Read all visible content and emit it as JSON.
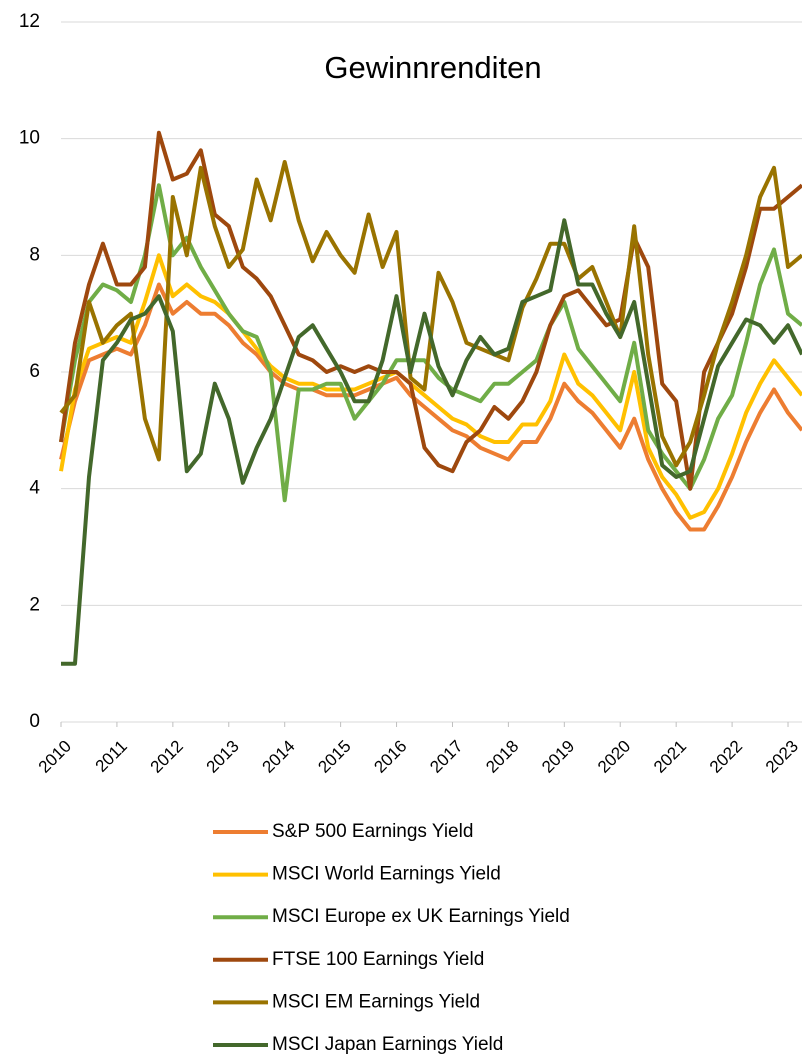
{
  "chart_data": {
    "type": "line",
    "title": "Gewinnrenditen",
    "x": [
      2010,
      2010.25,
      2010.5,
      2010.75,
      2011,
      2011.25,
      2011.5,
      2011.75,
      2012,
      2012.25,
      2012.5,
      2012.75,
      2013,
      2013.25,
      2013.5,
      2013.75,
      2014,
      2014.25,
      2014.5,
      2014.75,
      2015,
      2015.25,
      2015.5,
      2015.75,
      2016,
      2016.25,
      2016.5,
      2016.75,
      2017,
      2017.25,
      2017.5,
      2017.75,
      2018,
      2018.25,
      2018.5,
      2018.75,
      2019,
      2019.25,
      2019.5,
      2019.75,
      2020,
      2020.25,
      2020.5,
      2020.75,
      2021,
      2021.25,
      2021.5,
      2021.75,
      2022,
      2022.25,
      2022.5,
      2022.75,
      2023,
      2023.25
    ],
    "series": [
      {
        "name": "S&P 500 Earnings Yield",
        "color": "#ed7d31",
        "values": [
          4.5,
          5.5,
          6.2,
          6.3,
          6.4,
          6.3,
          6.8,
          7.5,
          7.0,
          7.2,
          7.0,
          7.0,
          6.8,
          6.5,
          6.3,
          6.0,
          5.8,
          5.7,
          5.7,
          5.6,
          5.6,
          5.6,
          5.7,
          5.8,
          5.9,
          5.6,
          5.4,
          5.2,
          5.0,
          4.9,
          4.7,
          4.6,
          4.5,
          4.8,
          4.8,
          5.2,
          5.8,
          5.5,
          5.3,
          5.0,
          4.7,
          5.2,
          4.5,
          4.0,
          3.6,
          3.3,
          3.3,
          3.7,
          4.2,
          4.8,
          5.3,
          5.7,
          5.3,
          5.0
        ]
      },
      {
        "name": "MSCI World Earnings Yield",
        "color": "#ffc000",
        "values": [
          4.3,
          5.7,
          6.4,
          6.5,
          6.6,
          6.5,
          7.2,
          8.0,
          7.3,
          7.5,
          7.3,
          7.2,
          7.0,
          6.7,
          6.4,
          6.1,
          5.9,
          5.8,
          5.8,
          5.7,
          5.7,
          5.7,
          5.8,
          5.9,
          6.0,
          5.8,
          5.6,
          5.4,
          5.2,
          5.1,
          4.9,
          4.8,
          4.8,
          5.1,
          5.1,
          5.5,
          6.3,
          5.8,
          5.6,
          5.3,
          5.0,
          6.0,
          4.7,
          4.2,
          3.9,
          3.5,
          3.6,
          4.0,
          4.6,
          5.3,
          5.8,
          6.2,
          5.9,
          5.6
        ]
      },
      {
        "name": "MSCI Europe ex UK Earnings Yield",
        "color": "#70ad47",
        "values": [
          4.8,
          6.2,
          7.2,
          7.5,
          7.4,
          7.2,
          8.0,
          9.2,
          8.0,
          8.3,
          7.8,
          7.4,
          7.0,
          6.7,
          6.6,
          6.0,
          3.8,
          5.7,
          5.7,
          5.8,
          5.8,
          5.2,
          5.5,
          5.8,
          6.2,
          6.2,
          6.2,
          5.9,
          5.7,
          5.6,
          5.5,
          5.8,
          5.8,
          6.0,
          6.2,
          6.8,
          7.2,
          6.4,
          6.1,
          5.8,
          5.5,
          6.5,
          5.0,
          4.6,
          4.3,
          4.0,
          4.5,
          5.2,
          5.6,
          6.5,
          7.5,
          8.1,
          7.0,
          6.8
        ]
      },
      {
        "name": "FTSE 100 Earnings Yield",
        "color": "#9e480e",
        "values": [
          4.8,
          6.5,
          7.5,
          8.2,
          7.5,
          7.5,
          7.8,
          10.1,
          9.3,
          9.4,
          9.8,
          8.7,
          8.5,
          7.8,
          7.6,
          7.3,
          6.8,
          6.3,
          6.2,
          6.0,
          6.1,
          6.0,
          6.1,
          6.0,
          6.0,
          5.8,
          4.7,
          4.4,
          4.3,
          4.8,
          5.0,
          5.4,
          5.2,
          5.5,
          6.0,
          6.8,
          7.3,
          7.4,
          7.1,
          6.8,
          6.9,
          8.3,
          7.8,
          5.8,
          5.5,
          4.0,
          6.0,
          6.5,
          7.0,
          7.8,
          8.8,
          8.8,
          9.0,
          9.2
        ]
      },
      {
        "name": "MSCI EM Earnings Yield",
        "color": "#997300",
        "values": [
          5.3,
          5.6,
          7.2,
          6.5,
          6.8,
          7.0,
          5.2,
          4.5,
          9.0,
          8.0,
          9.5,
          8.5,
          7.8,
          8.1,
          9.3,
          8.6,
          9.6,
          8.6,
          7.9,
          8.4,
          8.0,
          7.7,
          8.7,
          7.8,
          8.4,
          5.9,
          5.7,
          7.7,
          7.2,
          6.5,
          6.4,
          6.3,
          6.2,
          7.1,
          7.6,
          8.2,
          8.2,
          7.6,
          7.8,
          7.2,
          6.6,
          8.5,
          6.3,
          4.9,
          4.4,
          4.8,
          5.6,
          6.5,
          7.2,
          8.0,
          9.0,
          9.5,
          7.8,
          8.0
        ]
      },
      {
        "name": "MSCI Japan Earnings Yield",
        "color": "#43682b",
        "values": [
          1.0,
          1.0,
          4.2,
          6.2,
          6.5,
          6.9,
          7.0,
          7.3,
          6.7,
          4.3,
          4.6,
          5.8,
          5.2,
          4.1,
          4.7,
          5.2,
          5.9,
          6.6,
          6.8,
          6.4,
          6.0,
          5.5,
          5.5,
          6.2,
          7.3,
          6.0,
          7.0,
          6.1,
          5.6,
          6.2,
          6.6,
          6.3,
          6.4,
          7.2,
          7.3,
          7.4,
          8.6,
          7.5,
          7.5,
          7.0,
          6.6,
          7.2,
          5.8,
          4.4,
          4.2,
          4.3,
          5.2,
          6.1,
          6.5,
          6.9,
          6.8,
          6.5,
          6.8,
          6.3
        ]
      }
    ],
    "xlim": [
      2010,
      2023.25
    ],
    "xticks": [
      2010,
      2011,
      2012,
      2013,
      2014,
      2015,
      2016,
      2017,
      2018,
      2019,
      2020,
      2021,
      2022,
      2023
    ],
    "ylim": [
      0,
      12
    ],
    "yticks": [
      0,
      2,
      4,
      6,
      8,
      10,
      12
    ],
    "grid": true
  }
}
